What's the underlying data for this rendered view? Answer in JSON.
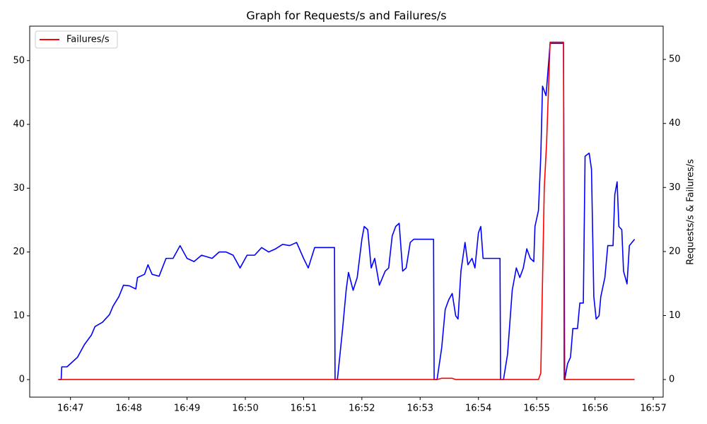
{
  "chart_data": {
    "type": "line",
    "title": "Graph for Requests/s and Failures/s",
    "y2label": "Requests/s & Failures/s",
    "legend": "upper left",
    "xlim": [
      46.3,
      57.17
    ],
    "xticks": [
      {
        "value": 47,
        "label": "16:47"
      },
      {
        "value": 48,
        "label": "16:48"
      },
      {
        "value": 49,
        "label": "16:49"
      },
      {
        "value": 50,
        "label": "16:50"
      },
      {
        "value": 51,
        "label": "16:51"
      },
      {
        "value": 52,
        "label": "16:52"
      },
      {
        "value": 53,
        "label": "16:53"
      },
      {
        "value": 54,
        "label": "16:54"
      },
      {
        "value": 55,
        "label": "16:55"
      },
      {
        "value": 56,
        "label": "16:56"
      },
      {
        "value": 57,
        "label": "16:57"
      }
    ],
    "ylim": [
      -2.75,
      55.4
    ],
    "yticks": [
      0,
      10,
      20,
      30,
      40,
      50
    ],
    "y2lim": [
      -2.75,
      55.2
    ],
    "y2ticks": [
      0,
      10,
      20,
      30,
      40,
      50
    ],
    "series": [
      {
        "color": "#0000ff",
        "x": [
          46.79,
          46.84,
          46.85,
          46.94,
          47.0,
          47.12,
          47.18,
          47.24,
          47.36,
          47.42,
          47.55,
          47.67,
          47.73,
          47.83,
          47.91,
          48.01,
          48.12,
          48.15,
          48.27,
          48.33,
          48.4,
          48.52,
          48.64,
          48.76,
          48.88,
          49.0,
          49.12,
          49.25,
          49.43,
          49.55,
          49.67,
          49.79,
          49.91,
          50.03,
          50.16,
          50.28,
          50.4,
          50.52,
          50.64,
          50.76,
          50.88,
          51.0,
          51.08,
          51.19,
          51.53,
          51.54,
          51.58,
          51.67,
          51.73,
          51.77,
          51.85,
          51.92,
          52.0,
          52.04,
          52.1,
          52.16,
          52.22,
          52.3,
          52.4,
          52.46,
          52.52,
          52.58,
          52.64,
          52.7,
          52.76,
          52.83,
          52.89,
          53.23,
          53.24,
          53.29,
          53.37,
          53.43,
          53.49,
          53.55,
          53.61,
          53.65,
          53.7,
          53.77,
          53.82,
          53.89,
          53.94,
          54.0,
          54.04,
          54.08,
          54.37,
          54.38,
          54.43,
          54.5,
          54.58,
          54.65,
          54.71,
          54.77,
          54.83,
          54.89,
          54.95,
          54.97,
          55.03,
          55.07,
          55.1,
          55.16,
          55.19,
          55.23,
          55.46,
          55.48,
          55.53,
          55.58,
          55.62,
          55.7,
          55.74,
          55.8,
          55.83,
          55.9,
          55.94,
          55.98,
          56.02,
          56.07,
          56.1,
          56.17,
          56.22,
          56.31,
          56.34,
          56.38,
          56.41,
          56.46,
          56.49,
          56.55,
          56.59,
          56.68
        ],
        "values": [
          0,
          0,
          2,
          2,
          2.5,
          3.5,
          4.5,
          5.5,
          7,
          8.3,
          9,
          10.2,
          11.5,
          13,
          14.8,
          14.7,
          14.2,
          16,
          16.5,
          18,
          16.5,
          16.2,
          19,
          19,
          21,
          19,
          18.5,
          19.5,
          19,
          20,
          20,
          19.5,
          17.5,
          19.5,
          19.5,
          20.7,
          20,
          20.5,
          21.2,
          21,
          21.5,
          19,
          17.5,
          20.7,
          20.7,
          0,
          0,
          8,
          14,
          16.8,
          14,
          16,
          22,
          24,
          23.5,
          17.5,
          19,
          14.8,
          17,
          17.5,
          22.5,
          24,
          24.5,
          17,
          17.5,
          21.5,
          22,
          22,
          0,
          0,
          5,
          11,
          12.5,
          13.5,
          10,
          9.5,
          17,
          21.5,
          18,
          19,
          17.5,
          23,
          24,
          19,
          19,
          0,
          0,
          4,
          14,
          17.5,
          16,
          17.5,
          20.5,
          19,
          18.5,
          24,
          26.5,
          35,
          46,
          44.5,
          48,
          52.7,
          52.7,
          0,
          2.5,
          3.5,
          8,
          8,
          12,
          12,
          35,
          35.5,
          33,
          13,
          9.5,
          10,
          13,
          16,
          21,
          21,
          29,
          31,
          24,
          23.5,
          17,
          15,
          21,
          22
        ]
      },
      {
        "name": "Failures/s",
        "color": "#ff0000",
        "axis": "y2",
        "x": [
          46.79,
          53.29,
          53.37,
          53.55,
          53.61,
          55.03,
          55.07,
          55.13,
          55.17,
          55.23,
          55.46,
          55.47,
          56.68
        ],
        "values": [
          0,
          0,
          0.2,
          0.2,
          0,
          0,
          1,
          30,
          37,
          52.7,
          52.7,
          0,
          0
        ]
      }
    ]
  }
}
